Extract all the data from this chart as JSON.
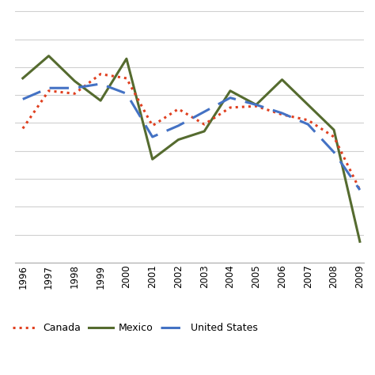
{
  "years": [
    1996,
    1997,
    1998,
    1999,
    2000,
    2001,
    2002,
    2003,
    2004,
    2005,
    2006,
    2007,
    2008,
    2009
  ],
  "canada": [
    1.6,
    4.3,
    4.1,
    5.5,
    5.2,
    1.8,
    3.0,
    1.9,
    3.1,
    3.2,
    2.6,
    2.2,
    1.0,
    -2.8
  ],
  "mexico": [
    5.2,
    6.8,
    5.0,
    3.6,
    6.6,
    -0.6,
    0.8,
    1.4,
    4.3,
    3.3,
    5.1,
    3.3,
    1.5,
    -6.5
  ],
  "usa": [
    3.7,
    4.5,
    4.5,
    4.8,
    4.1,
    1.0,
    1.8,
    2.8,
    3.8,
    3.3,
    2.7,
    1.9,
    -0.1,
    -2.8
  ],
  "canada_color": "#e04020",
  "mexico_color": "#556b2f",
  "usa_color": "#4472c4",
  "background_color": "#ffffff",
  "legend_labels": [
    "Canada",
    "Mexico",
    "United States"
  ],
  "ylim": [
    -8,
    10
  ],
  "grid_color": "#d0d0d0",
  "grid_linewidth": 0.8,
  "line_linewidth": 2.2,
  "canada_dot_size": 6,
  "usa_dash_pattern": [
    8,
    4
  ],
  "xtick_fontsize": 8.5,
  "legend_fontsize": 9
}
